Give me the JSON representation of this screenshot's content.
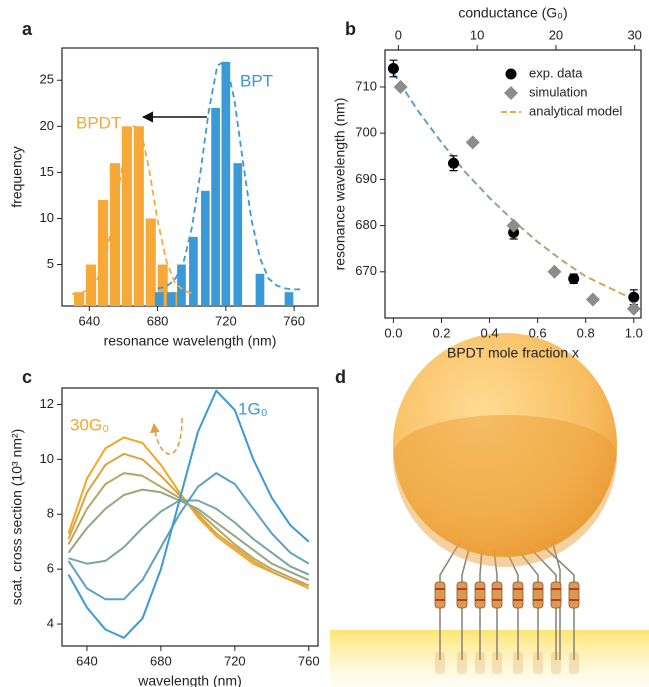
{
  "chart_data": [
    {
      "type": "bar",
      "panel": "a",
      "xlabel": "resonance wavelength (nm)",
      "ylabel": "frequency",
      "xlim": [
        624,
        774
      ],
      "ylim": [
        0.5,
        28.5
      ],
      "xticks": [
        640,
        680,
        720,
        760
      ],
      "yticks": [
        5,
        10,
        15,
        20,
        25
      ],
      "series": [
        {
          "name": "BPDT",
          "color": "#f7a836",
          "x": [
            634,
            641,
            648,
            655,
            662,
            669,
            676,
            683,
            690
          ],
          "values": [
            2,
            5,
            12,
            16,
            20,
            20,
            10,
            5,
            2
          ],
          "fit_x": [
            630,
            635,
            640,
            645,
            650,
            655,
            660,
            665,
            670,
            675,
            680,
            685,
            690,
            695,
            700
          ],
          "fit_values": [
            1.8,
            1.9,
            2.3,
            3.5,
            6.2,
            10.9,
            16.4,
            20.1,
            19.7,
            15.4,
            9.8,
            5.5,
            3.1,
            2.2,
            1.9
          ]
        },
        {
          "name": "BPT",
          "color": "#3a9ad8",
          "x": [
            681,
            688,
            694,
            701,
            708,
            714,
            720,
            727,
            740,
            757
          ],
          "values": [
            2,
            2,
            5,
            8,
            13,
            22,
            27,
            16,
            4,
            2
          ],
          "fit_x": [
            680,
            685,
            690,
            695,
            700,
            705,
            710,
            715,
            720,
            725,
            730,
            735,
            740,
            745,
            750,
            755,
            760,
            765
          ],
          "fit_values": [
            2.4,
            2.6,
            3.3,
            5.1,
            8.9,
            14.8,
            21.7,
            26.6,
            27.1,
            22.9,
            16.2,
            9.9,
            5.7,
            3.5,
            2.7,
            2.4,
            2.3,
            2.3
          ]
        }
      ]
    },
    {
      "type": "scatter",
      "panel": "b",
      "xlabel": "BPDT mole fraction x",
      "ylabel": "resonance wavelength (nm)",
      "x2label": "conductance (G₀)",
      "xlim": [
        -0.035,
        1.03
      ],
      "x2lim": [
        -1.7,
        30.8
      ],
      "ylim": [
        660,
        718
      ],
      "xticks": [
        {
          "value": 0,
          "label": "0.0"
        },
        0.2,
        0.4,
        0.6,
        0.8,
        {
          "value": 1,
          "label": "1.0"
        }
      ],
      "x2ticks": [
        0,
        10,
        20,
        30
      ],
      "yticks": [
        670,
        680,
        690,
        700,
        710
      ],
      "legend": "upper right",
      "series": [
        {
          "name": "exp. data",
          "color": "#000000",
          "marker": "circle",
          "x": [
            0,
            0.25,
            0.5,
            0.75,
            1.0
          ],
          "values": [
            714,
            693.5,
            678.5,
            668.5,
            664.5
          ],
          "errors": [
            1.8,
            1.6,
            1.4,
            1.0,
            1.6
          ]
        },
        {
          "name": "simulation",
          "color": "#8c8c8c",
          "marker": "diamond",
          "x": [
            0.03,
            0.33,
            0.5,
            0.67,
            0.83,
            1.0
          ],
          "values": [
            710,
            698,
            680,
            670,
            664,
            662
          ]
        },
        {
          "name": "analytical model",
          "colors": [
            "#4a9fd4",
            "#e8a84a"
          ],
          "linestyle": "dashed",
          "x": [
            0,
            0.1,
            0.2,
            0.3,
            0.4,
            0.5,
            0.6,
            0.7,
            0.8,
            0.9,
            1.0
          ],
          "values": [
            713,
            705,
            698,
            691.5,
            686,
            681,
            676.5,
            672.5,
            669,
            666.5,
            664
          ]
        }
      ]
    },
    {
      "type": "line",
      "panel": "c",
      "xlabel": "wavelength (nm)",
      "ylabel": "scat. cross section (10³ nm²)",
      "xlim": [
        626.5,
        765
      ],
      "ylim": [
        3.2,
        12.6
      ],
      "xticks": [
        640,
        680,
        720,
        760
      ],
      "yticks": [
        4,
        6,
        8,
        10,
        12
      ],
      "x": [
        630,
        640,
        650,
        660,
        670,
        680,
        690,
        700,
        710,
        720,
        730,
        740,
        750,
        760
      ],
      "series": [
        {
          "name": "30G₀",
          "color": "#f5a623",
          "values": [
            7.3,
            9.3,
            10.4,
            10.8,
            10.6,
            9.8,
            8.8,
            7.9,
            7.2,
            6.7,
            6.2,
            5.9,
            5.6,
            5.3
          ]
        },
        {
          "color": "#d9a540",
          "values": [
            7.1,
            8.8,
            9.8,
            10.2,
            10.0,
            9.4,
            8.7,
            8.0,
            7.3,
            6.8,
            6.3,
            5.9,
            5.6,
            5.4
          ]
        },
        {
          "color": "#b8a662",
          "values": [
            6.9,
            8.2,
            9.1,
            9.5,
            9.4,
            9.0,
            8.6,
            8.1,
            7.5,
            6.9,
            6.4,
            6.0,
            5.7,
            5.4
          ]
        },
        {
          "color": "#96a880",
          "values": [
            6.6,
            7.5,
            8.2,
            8.7,
            8.9,
            8.8,
            8.5,
            8.2,
            7.7,
            7.2,
            6.7,
            6.2,
            5.9,
            5.6
          ]
        },
        {
          "color": "#7aa6a0",
          "values": [
            6.4,
            6.2,
            6.3,
            6.8,
            7.5,
            8.1,
            8.5,
            8.5,
            8.2,
            7.7,
            7.1,
            6.6,
            6.1,
            5.8
          ]
        },
        {
          "color": "#5ca2bf",
          "values": [
            6.3,
            5.3,
            4.9,
            4.9,
            5.6,
            6.8,
            8.0,
            9.0,
            9.5,
            9.1,
            8.2,
            7.3,
            6.6,
            6.2
          ]
        },
        {
          "name": "1G₀",
          "color": "#3a9ad8",
          "values": [
            5.8,
            4.6,
            3.8,
            3.5,
            4.2,
            6.0,
            8.5,
            11.0,
            12.5,
            11.8,
            10.0,
            8.6,
            7.6,
            7.0
          ]
        }
      ]
    }
  ],
  "illustration": {
    "panel": "d"
  }
}
